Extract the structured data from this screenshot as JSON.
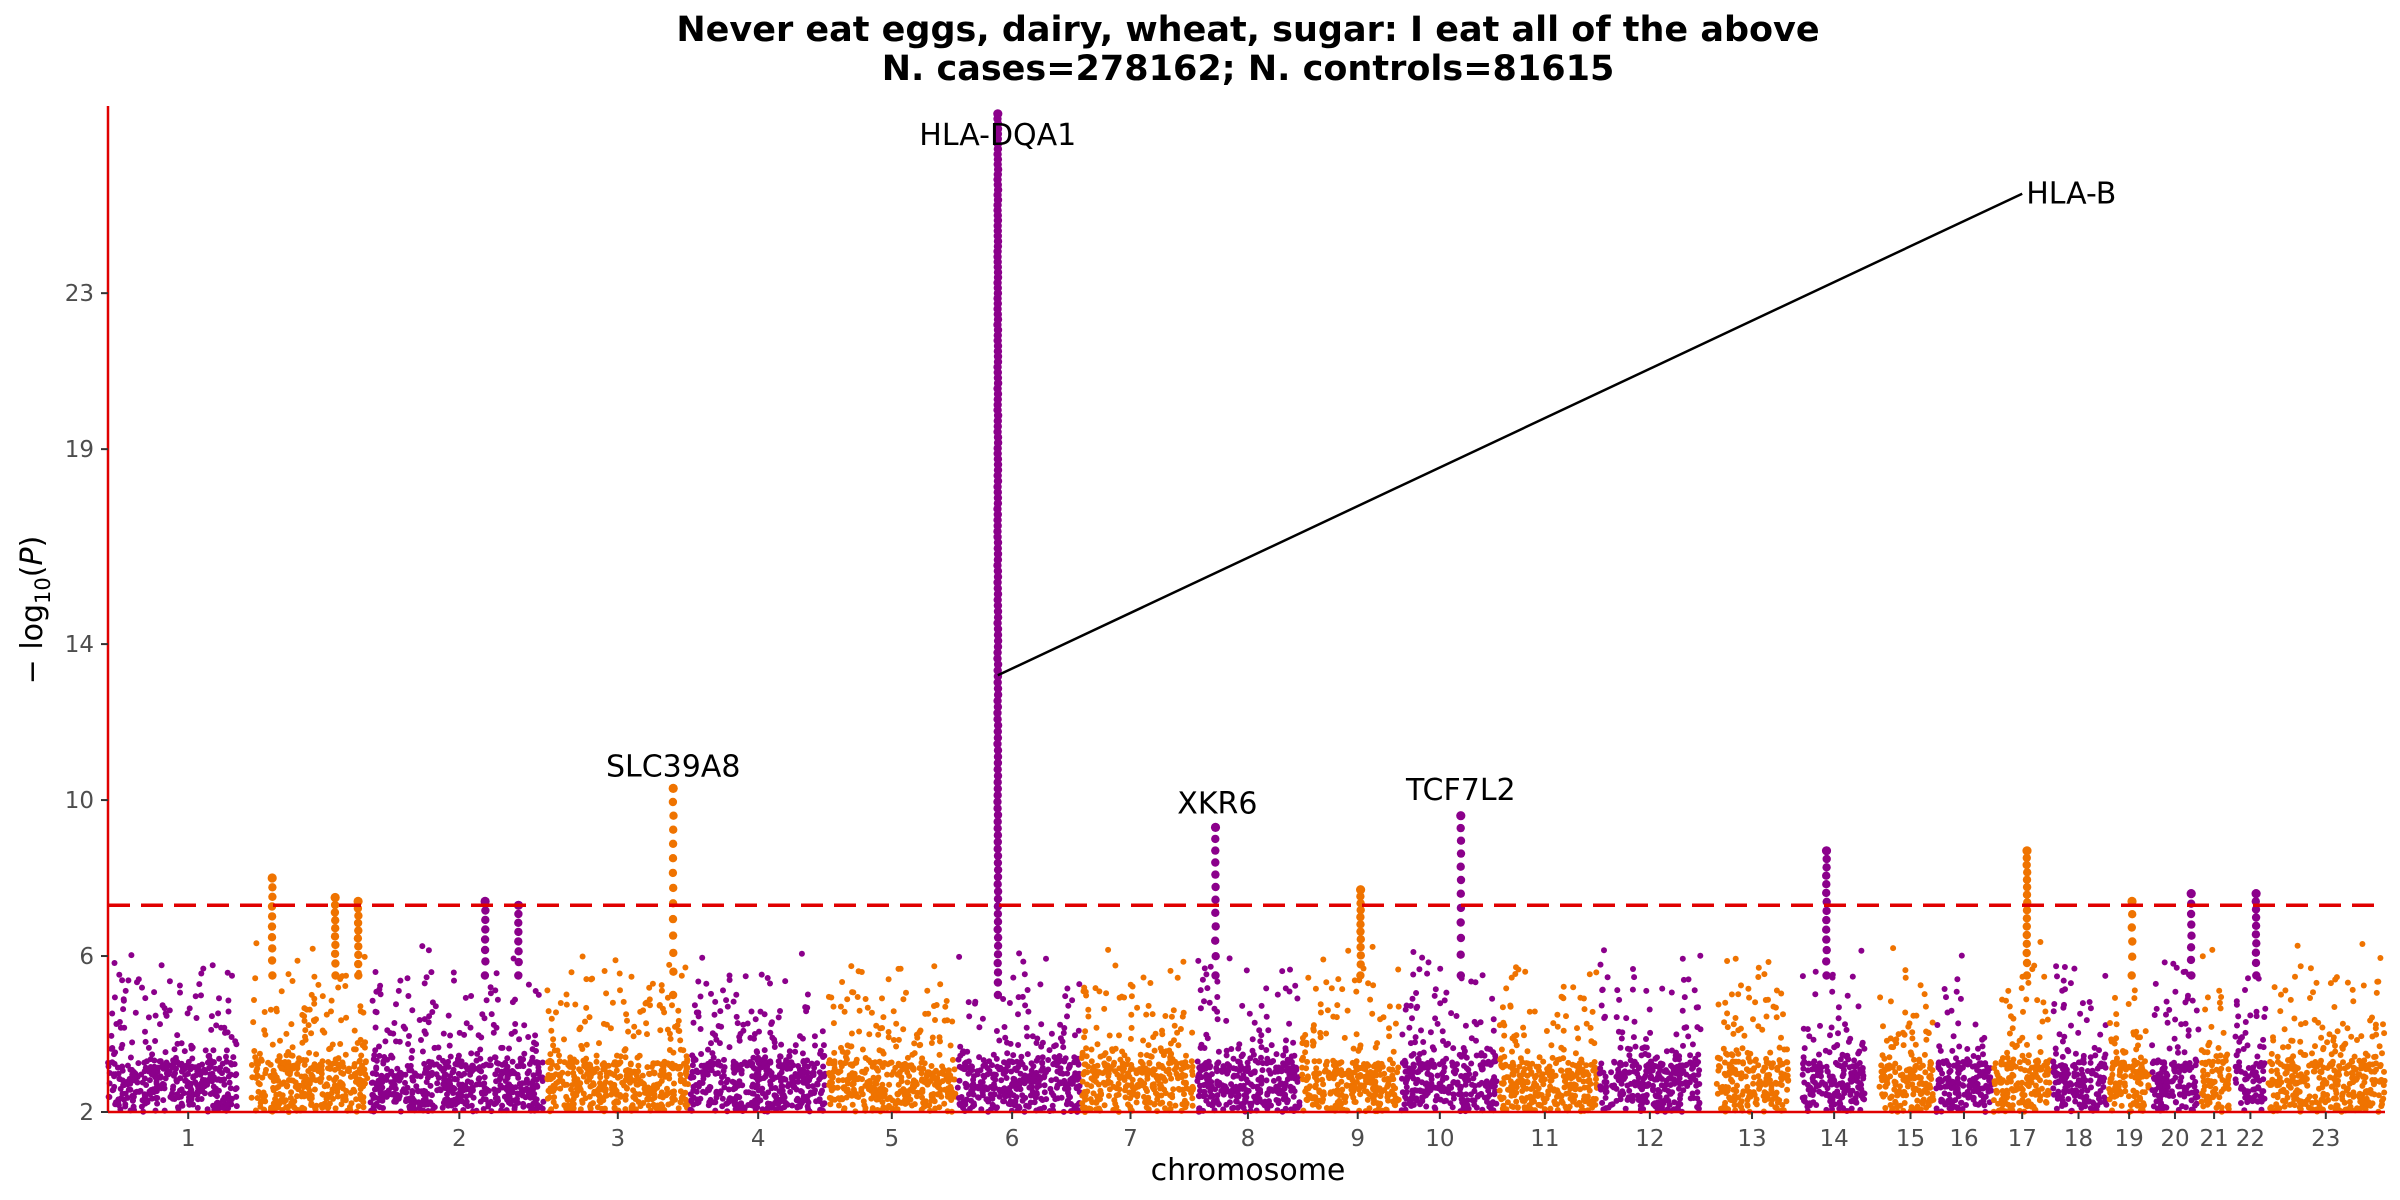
{
  "chart_data": {
    "type": "scatter",
    "title": "Never eat eggs, dairy, wheat, sugar: I eat all of the above",
    "subtitle": "N. cases=278162; N. controls=81615",
    "xlabel": "chromosome",
    "ylabel": "− log10(P)",
    "ylim": [
      2,
      27.8
    ],
    "yticks": [
      2,
      6,
      10,
      14,
      19,
      23
    ],
    "significance_threshold": 7.3,
    "colors": {
      "odd": "#8b008b",
      "even": "#ef7300",
      "axis": "#e00000",
      "threshold": "#e00000"
    },
    "chromosomes": [
      {
        "label": "1",
        "start": 0,
        "end": 135,
        "mid": 84
      },
      {
        "label": "",
        "start": 150,
        "end": 272,
        "mid": 211
      },
      {
        "label": "2",
        "start": 275,
        "end": 457,
        "mid": 368
      },
      {
        "label": "3",
        "start": 460,
        "end": 608,
        "mid": 534
      },
      {
        "label": "4",
        "start": 610,
        "end": 752,
        "mid": 681
      },
      {
        "label": "5",
        "start": 755,
        "end": 888,
        "mid": 821
      },
      {
        "label": "6",
        "start": 890,
        "end": 1018,
        "mid": 947
      },
      {
        "label": "7",
        "start": 1020,
        "end": 1137,
        "mid": 1071
      },
      {
        "label": "8",
        "start": 1140,
        "end": 1248,
        "mid": 1194
      },
      {
        "label": "9",
        "start": 1250,
        "end": 1352,
        "mid": 1309
      },
      {
        "label": "10",
        "start": 1355,
        "end": 1455,
        "mid": 1395
      },
      {
        "label": "11",
        "start": 1457,
        "end": 1560,
        "mid": 1505
      },
      {
        "label": "12",
        "start": 1562,
        "end": 1668,
        "mid": 1615
      },
      {
        "label": "13",
        "start": 1685,
        "end": 1760,
        "mid": 1722
      },
      {
        "label": "14",
        "start": 1775,
        "end": 1840,
        "mid": 1808
      },
      {
        "label": "15",
        "start": 1855,
        "end": 1912,
        "mid": 1888
      },
      {
        "label": "16",
        "start": 1915,
        "end": 1973,
        "mid": 1944
      },
      {
        "label": "17",
        "start": 1975,
        "end": 2034,
        "mid": 2005
      },
      {
        "label": "18",
        "start": 2037,
        "end": 2094,
        "mid": 2064
      },
      {
        "label": "19",
        "start": 2096,
        "end": 2138,
        "mid": 2117
      },
      {
        "label": "20",
        "start": 2140,
        "end": 2190,
        "mid": 2165
      },
      {
        "label": "21",
        "start": 2193,
        "end": 2222,
        "mid": 2206
      },
      {
        "label": "22",
        "start": 2228,
        "end": 2260,
        "mid": 2244
      },
      {
        "label": "23",
        "start": 2263,
        "end": 2385,
        "mid": 2323
      }
    ],
    "peaks": [
      {
        "x": 172,
        "y": 8.0,
        "n": 10,
        "min": 5.5
      },
      {
        "x": 238,
        "y": 7.5,
        "n": 10,
        "min": 5.5
      },
      {
        "x": 262,
        "y": 7.4,
        "n": 10,
        "min": 5.5
      },
      {
        "x": 395,
        "y": 7.4,
        "n": 8,
        "min": 5.5
      },
      {
        "x": 430,
        "y": 7.3,
        "n": 8,
        "min": 5.5
      },
      {
        "x": 592,
        "y": 10.3,
        "n": 14,
        "min": 5.0
      },
      {
        "x": 932,
        "y": 27.6,
        "n": 150,
        "min": 5.0
      },
      {
        "x": 1160,
        "y": 9.3,
        "n": 12,
        "min": 5.5
      },
      {
        "x": 1312,
        "y": 7.7,
        "n": 12,
        "min": 5.5
      },
      {
        "x": 1417,
        "y": 9.6,
        "n": 12,
        "min": 5.5
      },
      {
        "x": 1800,
        "y": 8.7,
        "n": 14,
        "min": 5.5
      },
      {
        "x": 2010,
        "y": 8.7,
        "n": 16,
        "min": 5.5
      },
      {
        "x": 2120,
        "y": 7.4,
        "n": 6,
        "min": 5.5
      },
      {
        "x": 2182,
        "y": 7.6,
        "n": 8,
        "min": 5.5
      },
      {
        "x": 2250,
        "y": 7.6,
        "n": 10,
        "min": 5.5
      }
    ],
    "labels": [
      {
        "text": "HLA-DQA1",
        "x": 932,
        "y": 26.8
      },
      {
        "text": "SLC39A8",
        "x": 592,
        "y": 10.6
      },
      {
        "text": "XKR6",
        "x": 1162,
        "y": 9.65
      },
      {
        "text": "TCF7L2",
        "x": 1417,
        "y": 10.0
      },
      {
        "text": "HLA-B",
        "x": 2005,
        "y": 25.55,
        "leader_from": [
          932,
          13.2
        ]
      }
    ]
  }
}
